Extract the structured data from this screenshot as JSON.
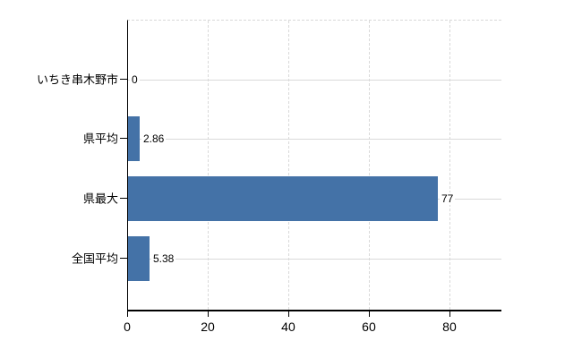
{
  "chart_data": {
    "type": "bar",
    "orientation": "horizontal",
    "categories": [
      "いちき串木野市",
      "県平均",
      "県最大",
      "全国平均"
    ],
    "values": [
      0,
      2.86,
      77,
      5.38
    ],
    "value_labels": [
      "0",
      "2.86",
      "77",
      "5.38"
    ],
    "x_ticks": [
      0,
      20,
      40,
      60,
      80
    ],
    "x_tick_labels": [
      "0",
      "20",
      "40",
      "60",
      "80"
    ],
    "xlim": [
      0,
      92.9
    ],
    "title": "",
    "xlabel": "",
    "ylabel": "",
    "legend": "none",
    "grid": "vertical-dashed",
    "colors": {
      "bar": "#4472a7",
      "grid": "#d9d9d9",
      "axis": "#000000",
      "text": "#000000",
      "background": "#ffffff"
    }
  }
}
